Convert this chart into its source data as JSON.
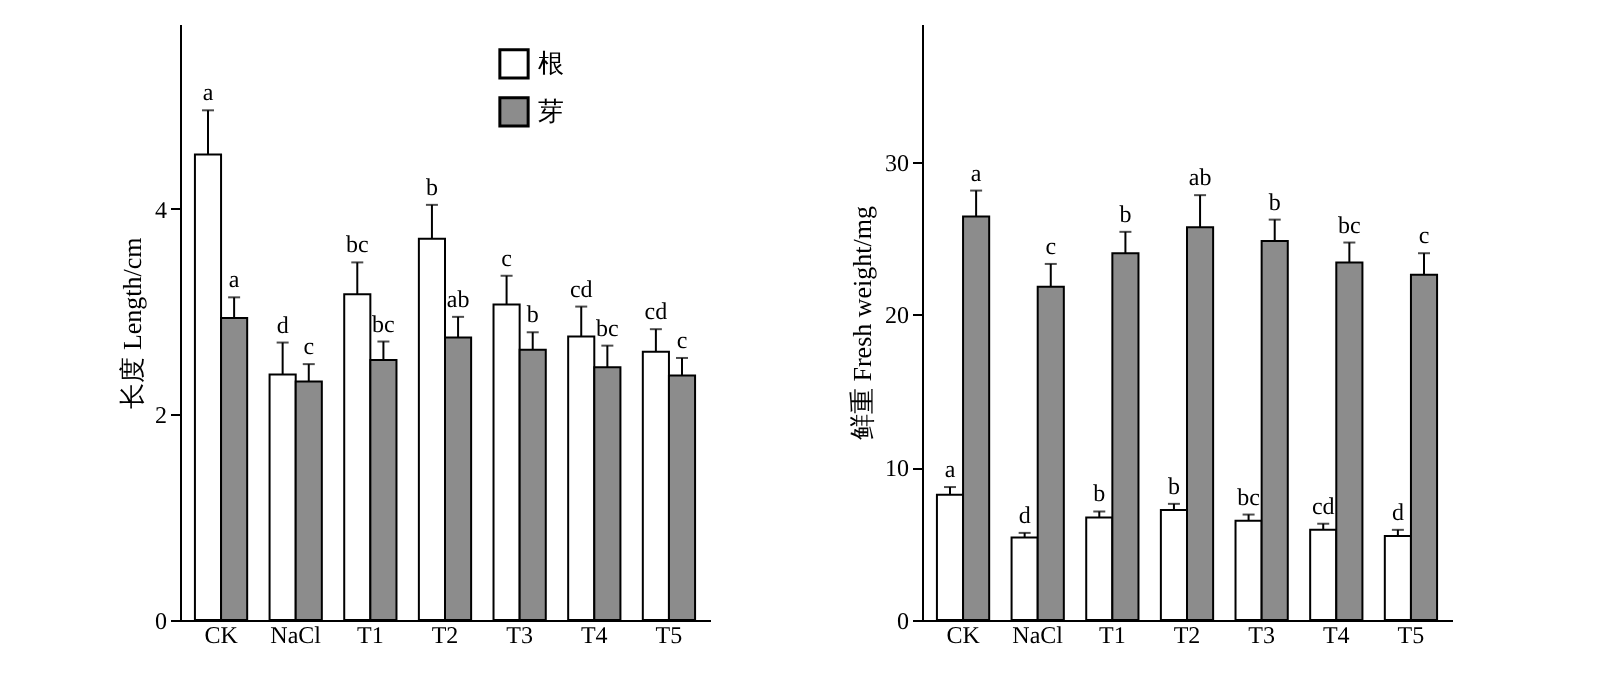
{
  "chart_data": [
    {
      "type": "bar",
      "categories": [
        "CK",
        "NaCl",
        "T1",
        "T2",
        "T3",
        "T4",
        "T5"
      ],
      "ylabel": "长度 Length/cm",
      "ylim": [
        0,
        5.8
      ],
      "yticks": [
        0,
        2,
        4
      ],
      "grid": false,
      "legend": "top right",
      "series": [
        {
          "name": "根",
          "color": "#ffffff",
          "values": [
            4.53,
            2.39,
            3.17,
            3.71,
            3.07,
            2.76,
            2.61
          ],
          "errors": [
            [
              4.53,
              4.96
            ],
            [
              2.39,
              2.7
            ],
            [
              3.17,
              3.48
            ],
            [
              3.71,
              4.04
            ],
            [
              3.07,
              3.35
            ],
            [
              2.76,
              3.05
            ],
            [
              2.61,
              2.83
            ]
          ],
          "value_labels": [
            "a",
            "d",
            "bc",
            "b",
            "c",
            "cd",
            "cd"
          ]
        },
        {
          "name": "芽",
          "color": "#8c8c8c",
          "values": [
            2.94,
            2.32,
            2.53,
            2.75,
            2.63,
            2.46,
            2.38
          ],
          "errors": [
            [
              2.94,
              3.14
            ],
            [
              2.32,
              2.49
            ],
            [
              2.53,
              2.71
            ],
            [
              2.75,
              2.95
            ],
            [
              2.63,
              2.8
            ],
            [
              2.46,
              2.67
            ],
            [
              2.38,
              2.55
            ]
          ],
          "value_labels": [
            "a",
            "c",
            "bc",
            "ab",
            "b",
            "bc",
            "c"
          ]
        }
      ]
    },
    {
      "type": "bar",
      "categories": [
        "CK",
        "NaCl",
        "T1",
        "T2",
        "T3",
        "T4",
        "T5"
      ],
      "ylabel": "鲜重 Fresh weight/mg",
      "ylim": [
        0,
        39
      ],
      "yticks": [
        0,
        10,
        20,
        30
      ],
      "grid": false,
      "legend": false,
      "series": [
        {
          "color": "#ffffff",
          "values": [
            8.2,
            5.4,
            6.7,
            7.2,
            6.5,
            5.9,
            5.5
          ],
          "errors": [
            [
              8.2,
              8.7
            ],
            [
              5.4,
              5.7
            ],
            [
              6.7,
              7.1
            ],
            [
              7.2,
              7.6
            ],
            [
              6.5,
              6.9
            ],
            [
              5.9,
              6.3
            ],
            [
              5.5,
              5.9
            ]
          ],
          "value_labels": [
            "a",
            "d",
            "b",
            "b",
            "bc",
            "cd",
            "d"
          ]
        },
        {
          "color": "#8c8c8c",
          "values": [
            26.4,
            21.8,
            24.0,
            25.7,
            24.8,
            23.4,
            22.6
          ],
          "errors": [
            [
              26.4,
              28.1
            ],
            [
              21.8,
              23.3
            ],
            [
              24.0,
              25.4
            ],
            [
              25.7,
              27.8
            ],
            [
              24.8,
              26.2
            ],
            [
              23.4,
              24.7
            ],
            [
              22.6,
              24.0
            ]
          ],
          "value_labels": [
            "a",
            "c",
            "b",
            "ab",
            "b",
            "bc",
            "c"
          ]
        }
      ]
    }
  ]
}
